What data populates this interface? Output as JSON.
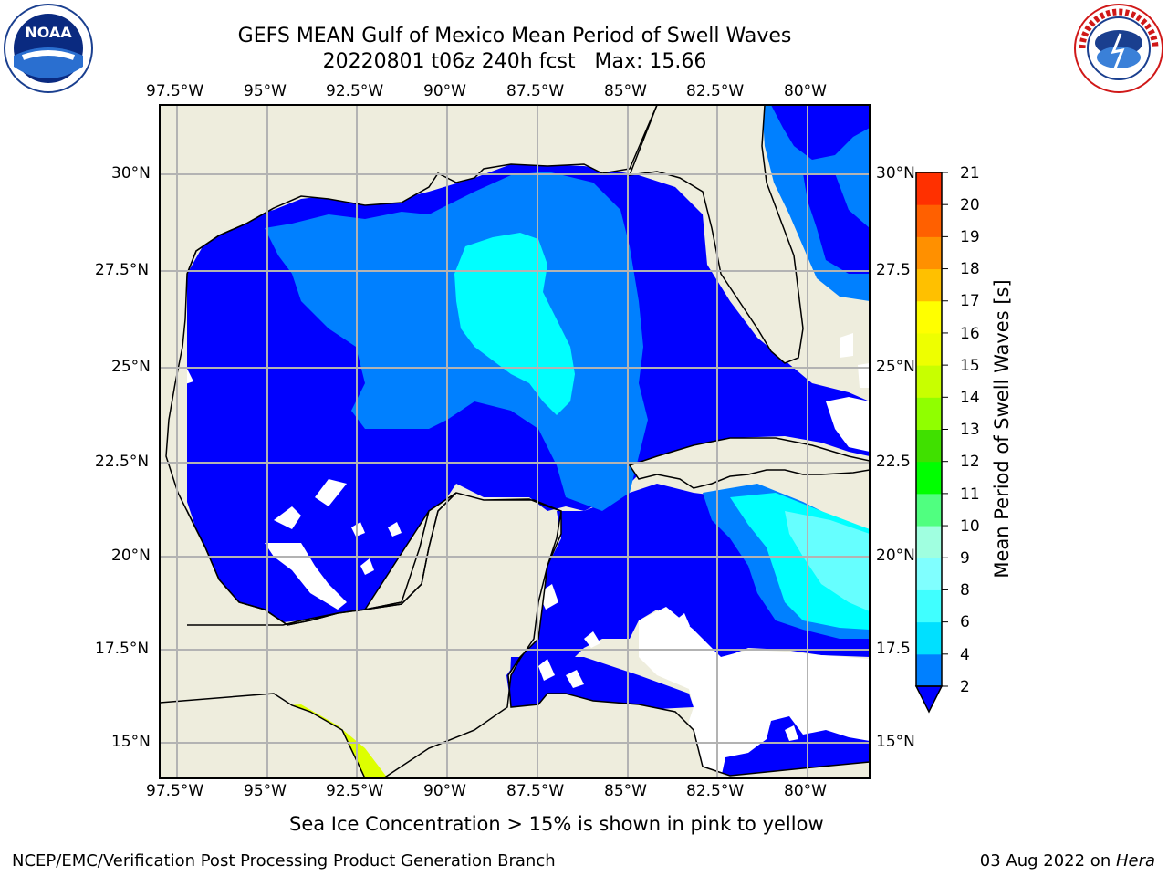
{
  "title": {
    "line1": "GEFS MEAN Gulf of Mexico Mean Period of Swell Waves",
    "line2": "20220801 t06z 240h fcst   Max: 15.66"
  },
  "logos": {
    "left": {
      "text": "NOAA",
      "icon": "noaa-logo-icon"
    },
    "right": {
      "text": "NATIONAL WEATHER SERVICE",
      "icon": "nws-logo-icon"
    }
  },
  "map": {
    "lon_labels": [
      "97.5°W",
      "95°W",
      "92.5°W",
      "90°W",
      "87.5°W",
      "85°W",
      "82.5°W",
      "80°W"
    ],
    "lat_labels_left": [
      "30°N",
      "27.5°N",
      "25°N",
      "22.5°N",
      "20°N",
      "17.5°N",
      "15°N"
    ],
    "lat_labels_right": [
      "30°N",
      "27.5",
      "25°N",
      "22.5",
      "20°N",
      "17.5",
      "15°N"
    ],
    "colors": {
      "land": "#eeeddd",
      "ocean_deep": "#0000ff",
      "ocean_mid": "#0080ff",
      "cyan": "#00ffff",
      "light_cyan": "#66ffff",
      "ice_yellow": "#ddff00",
      "grid": "#b3b3b3"
    }
  },
  "colorbar": {
    "label": "Mean Period of Swell Waves [s]",
    "ticks": [
      "2",
      "4",
      "6",
      "8",
      "9",
      "10",
      "11",
      "12",
      "13",
      "14",
      "15",
      "16",
      "17",
      "18",
      "19",
      "20",
      "21"
    ],
    "colors": [
      "#0080ff",
      "#00e0ff",
      "#40ffff",
      "#80ffff",
      "#a0ffe0",
      "#50ff80",
      "#00ff00",
      "#40e000",
      "#90ff00",
      "#c8ff00",
      "#eeff00",
      "#ffff00",
      "#ffc000",
      "#ff9000",
      "#ff6000",
      "#ff3000",
      "#ff0000"
    ],
    "extend_color": "#0000ff"
  },
  "subtitle": "Sea Ice Concentration > 15% is shown in pink to yellow",
  "footer": {
    "left": "NCEP/EMC/Verification Post Processing Product Generation Branch",
    "right_date": "03 Aug 2022 on ",
    "right_host": "Hera"
  }
}
